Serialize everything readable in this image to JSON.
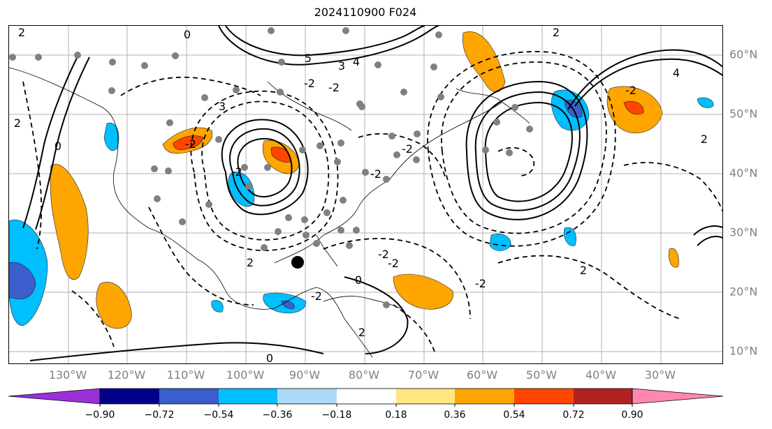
{
  "title": "2024110900 F024",
  "lon_ticks": [
    "130°W",
    "120°W",
    "110°W",
    "100°W",
    "90°W",
    "80°W",
    "70°W",
    "60°W",
    "50°W",
    "40°W",
    "30°W"
  ],
  "lat_ticks": [
    "60°N",
    "50°N",
    "40°N",
    "30°N",
    "20°N",
    "10°N"
  ],
  "colorbar": {
    "labels": [
      "−0.90",
      "−0.72",
      "−0.54",
      "−0.36",
      "−0.18",
      "0.18",
      "0.36",
      "0.54",
      "0.72",
      "0.90"
    ],
    "colors": [
      "#9b30d9",
      "#00008b",
      "#3a5fcd",
      "#00bfff",
      "#add8f7",
      "#ffffff",
      "#ffe680",
      "#ffa500",
      "#ff4500",
      "#b22222",
      "#ff88b0"
    ]
  },
  "contour_labels": [
    {
      "text": "2"
    },
    {
      "text": "0"
    },
    {
      "text": "5"
    },
    {
      "text": "3"
    },
    {
      "text": "4"
    },
    {
      "text": "2"
    },
    {
      "text": "-2"
    },
    {
      "text": "-2"
    },
    {
      "text": "2"
    },
    {
      "text": "3"
    },
    {
      "text": "-2"
    },
    {
      "text": "-2"
    },
    {
      "text": "-2"
    },
    {
      "text": "0"
    },
    {
      "text": "-2"
    },
    {
      "text": "2"
    },
    {
      "text": "-2"
    },
    {
      "text": "-2"
    },
    {
      "text": "-2"
    },
    {
      "text": "0"
    },
    {
      "text": "4"
    },
    {
      "text": "2"
    },
    {
      "text": "-2"
    },
    {
      "text": "2"
    },
    {
      "text": "0"
    },
    {
      "text": "2"
    },
    {
      "text": "-2"
    }
  ],
  "legend_colors": {
    "positive": "#ffa500",
    "strong_positive": "#ff4500",
    "negative": "#00bfff",
    "strong_negative": "#3a5fcd"
  }
}
